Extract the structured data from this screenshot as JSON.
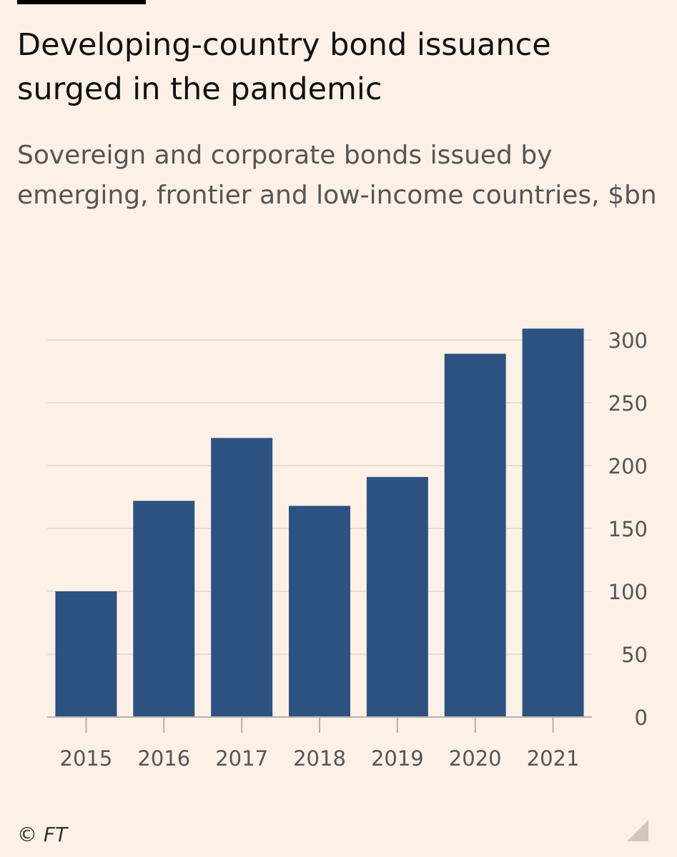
{
  "chart_data": {
    "type": "bar",
    "title": "Developing-country bond issuance surged in the pandemic",
    "subtitle": "Sovereign and corporate bonds issued by emerging, frontier and low-income countries, $bn",
    "categories": [
      "2015",
      "2016",
      "2017",
      "2018",
      "2019",
      "2020",
      "2021"
    ],
    "values": [
      100,
      172,
      222,
      168,
      191,
      289,
      309
    ],
    "ylim": [
      0,
      300
    ],
    "yticks": [
      0,
      50,
      100,
      150,
      200,
      250,
      300
    ],
    "xlabel": "",
    "ylabel": "",
    "grid": true,
    "bar_color": "#2c5282",
    "source": "© FT"
  }
}
